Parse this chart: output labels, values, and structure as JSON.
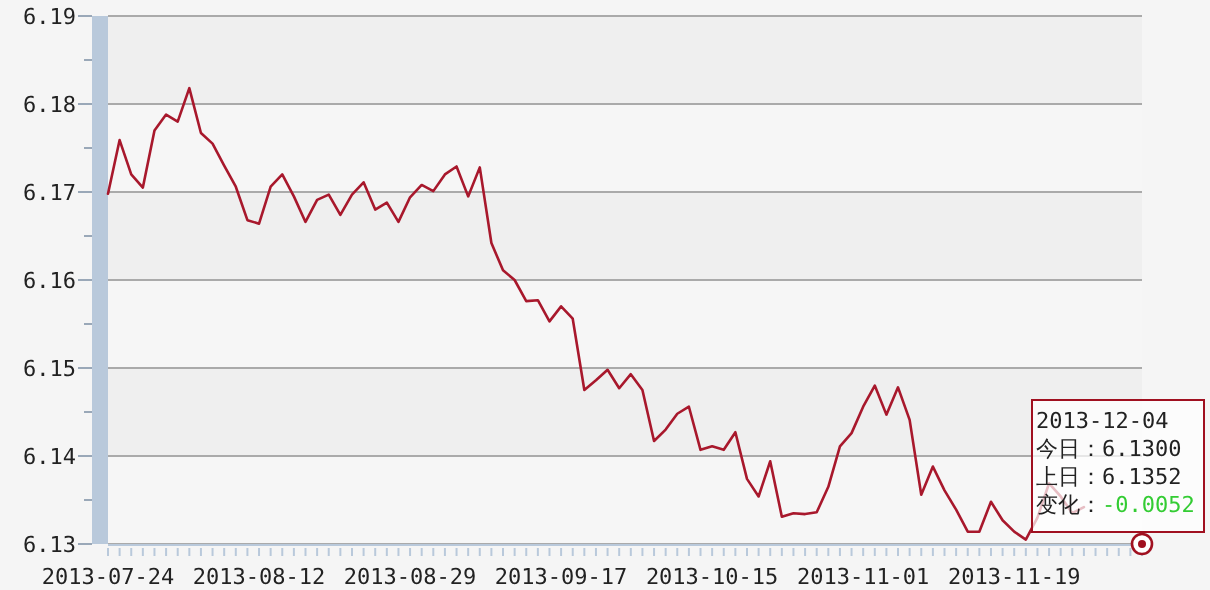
{
  "chart_data": {
    "type": "line",
    "categories": [
      "2013-07-24",
      null,
      null,
      null,
      null,
      null,
      null,
      null,
      null,
      null,
      null,
      null,
      null,
      "2013-08-12",
      null,
      null,
      null,
      null,
      null,
      null,
      null,
      null,
      null,
      null,
      null,
      null,
      "2013-08-29",
      null,
      null,
      null,
      null,
      null,
      null,
      null,
      null,
      null,
      null,
      null,
      null,
      "2013-09-17",
      null,
      null,
      null,
      null,
      null,
      null,
      null,
      null,
      null,
      null,
      null,
      null,
      "2013-10-15",
      null,
      null,
      null,
      null,
      null,
      null,
      null,
      null,
      null,
      null,
      null,
      null,
      "2013-11-01",
      null,
      null,
      null,
      null,
      null,
      null,
      null,
      null,
      null,
      null,
      null,
      null,
      "2013-11-19",
      null,
      null,
      null,
      null,
      null,
      null,
      null,
      null,
      null,
      null,
      null
    ],
    "series": [
      {
        "color": "#a8182c",
        "values": [
          6.1698,
          6.1759,
          6.172,
          6.1705,
          6.177,
          6.1788,
          6.178,
          6.1818,
          6.1767,
          6.1755,
          6.173,
          6.1706,
          6.1668,
          6.1664,
          6.1706,
          6.172,
          6.1695,
          6.1666,
          6.1691,
          6.1697,
          6.1674,
          6.1697,
          6.1711,
          6.168,
          6.1688,
          6.1666,
          6.1694,
          6.1708,
          6.1701,
          6.172,
          6.1729,
          6.1695,
          6.1728,
          6.1642,
          6.1611,
          6.16,
          6.1576,
          6.1577,
          6.1553,
          6.157,
          6.1556,
          6.1475,
          6.1486,
          6.1498,
          6.1477,
          6.1493,
          6.1475,
          6.1417,
          6.143,
          6.1448,
          6.1456,
          6.1407,
          6.1411,
          6.1407,
          6.1427,
          6.1374,
          6.1354,
          6.1394,
          6.1331,
          6.1335,
          6.1334,
          6.1336,
          6.1365,
          6.1411,
          6.1426,
          6.1456,
          6.148,
          6.1447,
          6.1478,
          6.1441,
          6.1356,
          6.1388,
          6.1361,
          6.1339,
          6.1314,
          6.1314,
          6.1348,
          6.1327,
          6.1314,
          6.1305,
          6.133,
          6.1369,
          6.1354,
          6.1335,
          6.1342,
          null,
          null,
          null,
          null,
          6.13
        ]
      }
    ],
    "ylim": [
      6.13,
      6.19
    ],
    "yticks": [
      6.13,
      {
        "value": 6.135,
        "label": null
      },
      6.14,
      {
        "value": 6.145,
        "label": null
      },
      6.15,
      {
        "value": 6.155,
        "label": null
      },
      6.16,
      {
        "value": 6.165,
        "label": null
      },
      6.17,
      {
        "value": 6.175,
        "label": null
      },
      6.18,
      {
        "value": 6.185,
        "label": null
      },
      6.19
    ],
    "grid": "y",
    "annotations": [
      "2013-12-04\n今日：6.1300\n上日：6.1352\n变化：-0.0052"
    ]
  }
}
